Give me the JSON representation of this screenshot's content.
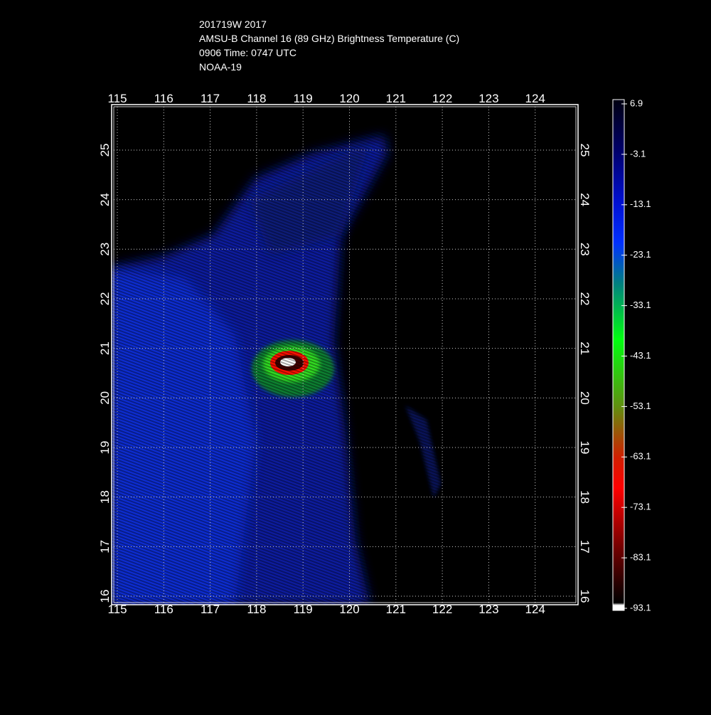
{
  "header": {
    "lines": [
      "201719W 2017",
      "AMSU-B Channel 16 (89 GHz) Brightness Temperature (C)",
      "0906 Time: 0747 UTC",
      "NOAA-19"
    ]
  },
  "map": {
    "lon_ticks": [
      115,
      116,
      117,
      118,
      119,
      120,
      121,
      122,
      123,
      124
    ],
    "lat_ticks": [
      16,
      17,
      18,
      19,
      20,
      21,
      22,
      23,
      24,
      25
    ]
  },
  "colorbar": {
    "labels": [
      6.9,
      -3.1,
      -13.1,
      -23.1,
      -33.1,
      -43.1,
      -53.1,
      -63.1,
      -73.1,
      -83.1,
      -93.1
    ]
  }
}
